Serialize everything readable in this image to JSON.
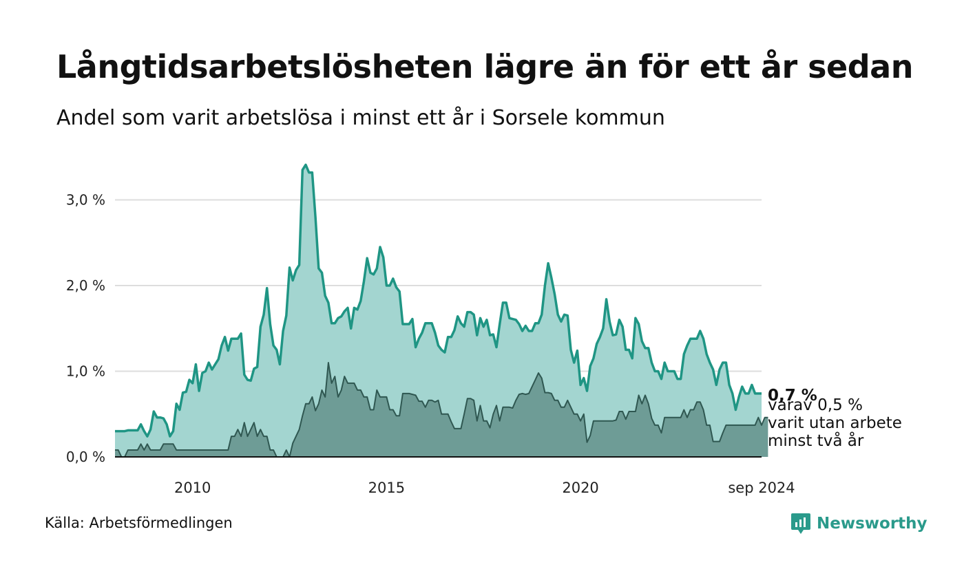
{
  "title": "Långtidsarbetslösheten lägre än för ett år sedan",
  "subtitle": "Andel som varit arbetslösa i minst ett år i Sorsele kommun",
  "source": "Källa: Arbetsförmedlingen",
  "brand": "Newsworthy",
  "annotation": {
    "value": "0,7 %",
    "line1": "varav 0,5 %",
    "line2": "varit utan arbete",
    "line3": "minst två år"
  },
  "colors": {
    "main_line": "#1f9584",
    "main_fill": "#a3d5d0",
    "sub_line": "#2f5751",
    "sub_fill": "#6e9c96",
    "grid": "#dddddd",
    "brand": "#2a9a8b"
  },
  "chart_data": {
    "type": "area",
    "x_axis": {
      "ticks": [
        "2010",
        "2015",
        "2020",
        "sep 2024"
      ]
    },
    "y_axis": {
      "ticks": [
        "0,0 %",
        "1,0 %",
        "2,0 %",
        "3,0 %"
      ],
      "ylim": [
        0,
        3.5
      ]
    },
    "grid": true,
    "series": [
      {
        "name": "Andel som varit arbetslösa i minst ett år",
        "x_range": [
          "2008-01",
          "2024-09"
        ],
        "values": [
          0.3,
          0.3,
          0.3,
          0.3,
          0.31,
          0.31,
          0.31,
          0.31,
          0.38,
          0.3,
          0.24,
          0.32,
          0.53,
          0.46,
          0.46,
          0.45,
          0.38,
          0.24,
          0.3,
          0.62,
          0.55,
          0.75,
          0.76,
          0.9,
          0.86,
          1.08,
          0.77,
          0.98,
          1.0,
          1.1,
          1.02,
          1.08,
          1.14,
          1.3,
          1.4,
          1.24,
          1.38,
          1.38,
          1.38,
          1.44,
          0.96,
          0.9,
          0.89,
          1.03,
          1.05,
          1.52,
          1.66,
          1.97,
          1.55,
          1.3,
          1.25,
          1.08,
          1.47,
          1.65,
          2.21,
          2.06,
          2.18,
          2.24,
          3.35,
          3.41,
          3.32,
          3.32,
          2.8,
          2.2,
          2.15,
          1.88,
          1.8,
          1.56,
          1.56,
          1.62,
          1.64,
          1.7,
          1.74,
          1.5,
          1.74,
          1.72,
          1.82,
          2.05,
          2.32,
          2.15,
          2.13,
          2.2,
          2.45,
          2.33,
          2.0,
          2.0,
          2.08,
          1.98,
          1.93,
          1.55,
          1.55,
          1.55,
          1.61,
          1.28,
          1.38,
          1.45,
          1.56,
          1.56,
          1.56,
          1.45,
          1.3,
          1.25,
          1.22,
          1.4,
          1.4,
          1.48,
          1.64,
          1.56,
          1.52,
          1.69,
          1.69,
          1.66,
          1.42,
          1.62,
          1.52,
          1.6,
          1.42,
          1.43,
          1.28,
          1.55,
          1.8,
          1.8,
          1.62,
          1.61,
          1.6,
          1.55,
          1.47,
          1.53,
          1.47,
          1.47,
          1.56,
          1.56,
          1.66,
          2.0,
          2.26,
          2.09,
          1.9,
          1.66,
          1.58,
          1.66,
          1.65,
          1.25,
          1.1,
          1.24,
          0.84,
          0.92,
          0.77,
          1.06,
          1.15,
          1.32,
          1.4,
          1.5,
          1.84,
          1.58,
          1.42,
          1.43,
          1.6,
          1.52,
          1.25,
          1.25,
          1.15,
          1.62,
          1.55,
          1.35,
          1.27,
          1.27,
          1.1,
          1.0,
          1.0,
          0.91,
          1.1,
          1.0,
          1.0,
          1.0,
          0.91,
          0.91,
          1.2,
          1.3,
          1.38,
          1.38,
          1.38,
          1.47,
          1.38,
          1.2,
          1.1,
          1.02,
          0.84,
          1.02,
          1.1,
          1.1,
          0.84,
          0.74,
          0.55,
          0.7,
          0.82,
          0.74,
          0.74,
          0.84,
          0.74,
          0.74,
          0.74
        ]
      },
      {
        "name": "varav minst två år",
        "x_range": [
          "2008-01",
          "2024-09"
        ],
        "values": [
          0.08,
          0.08,
          0.0,
          0.0,
          0.08,
          0.08,
          0.08,
          0.08,
          0.15,
          0.08,
          0.15,
          0.08,
          0.08,
          0.08,
          0.08,
          0.15,
          0.15,
          0.15,
          0.15,
          0.08,
          0.08,
          0.08,
          0.08,
          0.08,
          0.08,
          0.08,
          0.08,
          0.08,
          0.08,
          0.08,
          0.08,
          0.08,
          0.08,
          0.08,
          0.08,
          0.08,
          0.24,
          0.24,
          0.32,
          0.24,
          0.4,
          0.24,
          0.32,
          0.4,
          0.24,
          0.32,
          0.24,
          0.24,
          0.08,
          0.08,
          0.0,
          0.0,
          0.0,
          0.08,
          0.0,
          0.16,
          0.24,
          0.32,
          0.48,
          0.62,
          0.62,
          0.7,
          0.54,
          0.62,
          0.78,
          0.7,
          1.1,
          0.86,
          0.94,
          0.7,
          0.78,
          0.94,
          0.86,
          0.86,
          0.86,
          0.78,
          0.78,
          0.7,
          0.7,
          0.55,
          0.55,
          0.78,
          0.7,
          0.7,
          0.7,
          0.55,
          0.55,
          0.48,
          0.48,
          0.74,
          0.74,
          0.74,
          0.73,
          0.72,
          0.65,
          0.65,
          0.58,
          0.66,
          0.66,
          0.64,
          0.66,
          0.5,
          0.5,
          0.5,
          0.41,
          0.33,
          0.33,
          0.33,
          0.5,
          0.68,
          0.68,
          0.66,
          0.42,
          0.6,
          0.42,
          0.42,
          0.34,
          0.5,
          0.6,
          0.42,
          0.58,
          0.58,
          0.58,
          0.57,
          0.66,
          0.73,
          0.74,
          0.73,
          0.74,
          0.82,
          0.9,
          0.98,
          0.92,
          0.75,
          0.75,
          0.74,
          0.66,
          0.66,
          0.58,
          0.58,
          0.66,
          0.58,
          0.5,
          0.5,
          0.42,
          0.5,
          0.17,
          0.25,
          0.42,
          0.42,
          0.42,
          0.42,
          0.42,
          0.42,
          0.42,
          0.43,
          0.53,
          0.53,
          0.44,
          0.53,
          0.53,
          0.53,
          0.72,
          0.62,
          0.72,
          0.62,
          0.45,
          0.37,
          0.37,
          0.28,
          0.46,
          0.46,
          0.46,
          0.46,
          0.46,
          0.46,
          0.55,
          0.46,
          0.55,
          0.55,
          0.64,
          0.64,
          0.55,
          0.37,
          0.37,
          0.18,
          0.18,
          0.18,
          0.28,
          0.37,
          0.37,
          0.37,
          0.37,
          0.37,
          0.37,
          0.37,
          0.37,
          0.37,
          0.37,
          0.46,
          0.37,
          0.46,
          0.46
        ]
      }
    ]
  }
}
